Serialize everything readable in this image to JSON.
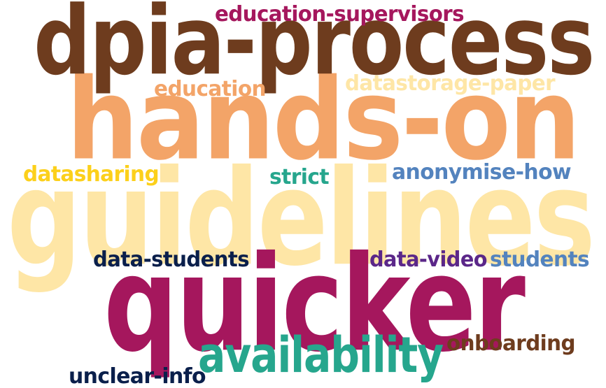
{
  "words": [
    {
      "id": "guidelines",
      "text": "guidelines",
      "color": "#fee6a6"
    },
    {
      "id": "hands-on",
      "text": "hands-on",
      "color": "#f3a468"
    },
    {
      "id": "dpia-process",
      "text": "dpia-process",
      "color": "#6e3c1e"
    },
    {
      "id": "quicker",
      "text": "quicker",
      "color": "#a5175d"
    },
    {
      "id": "availability",
      "text": "availability",
      "color": "#26a68d"
    },
    {
      "id": "education-supervisors",
      "text": "education-supervisors",
      "color": "#a5175d"
    },
    {
      "id": "education",
      "text": "education",
      "color": "#f3a468"
    },
    {
      "id": "datastorage-paper",
      "text": "datastorage-paper",
      "color": "#fee6a6"
    },
    {
      "id": "datasharing",
      "text": "datasharing",
      "color": "#fcd01b"
    },
    {
      "id": "strict",
      "text": "strict",
      "color": "#26a68d"
    },
    {
      "id": "anonymise-how",
      "text": "anonymise-how",
      "color": "#5383be"
    },
    {
      "id": "data-students",
      "text": "data-students",
      "color": "#0a1f4b"
    },
    {
      "id": "data-video",
      "text": "data-video",
      "color": "#5b2789"
    },
    {
      "id": "students",
      "text": "students",
      "color": "#5383be"
    },
    {
      "id": "onboarding",
      "text": "onboarding",
      "color": "#6e3c1e"
    },
    {
      "id": "unclear-info",
      "text": "unclear-info",
      "color": "#0a1f4b"
    }
  ]
}
